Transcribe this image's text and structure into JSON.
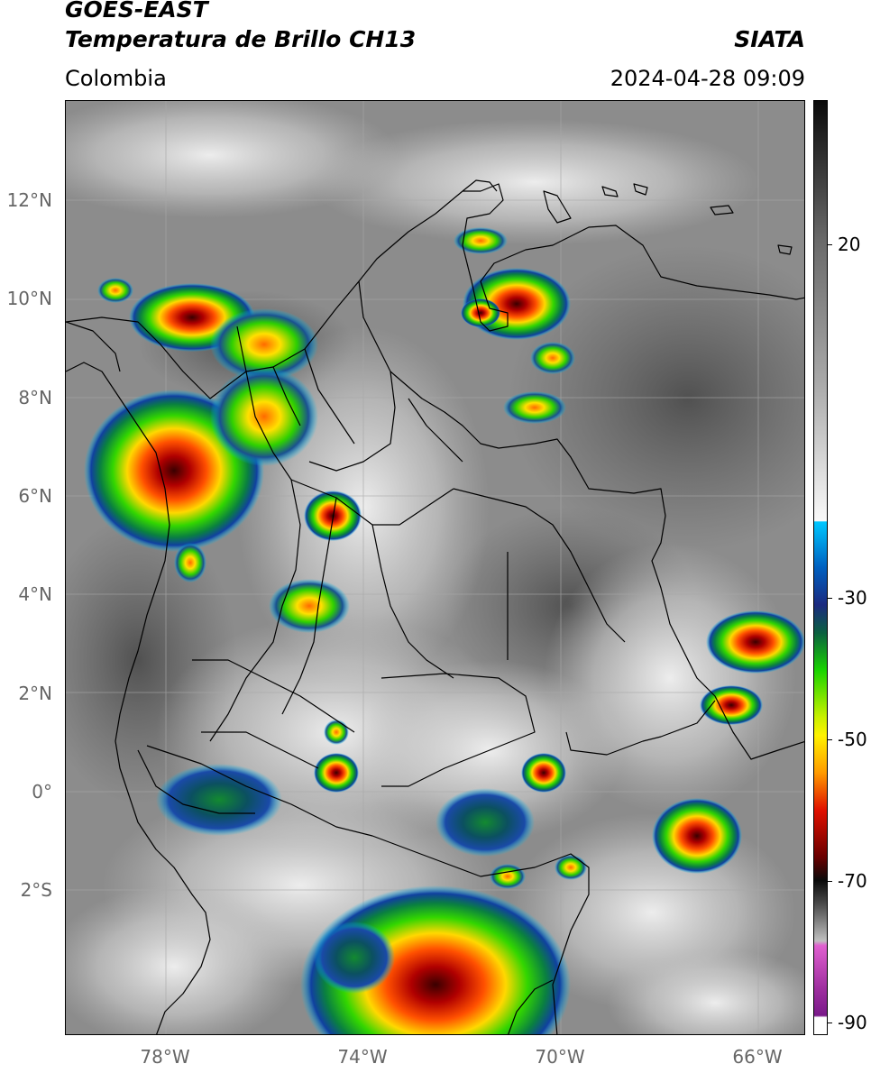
{
  "header": {
    "title": "GOES-EAST",
    "subtitle": "Temperatura de Brillo CH13",
    "region": "Colombia",
    "brand": "SIATA",
    "timestamp": "2024-04-28 09:09"
  },
  "map": {
    "lat_ticks": [
      "12°N",
      "10°N",
      "8°N",
      "6°N",
      "4°N",
      "2°N",
      "0°",
      "2°S"
    ],
    "lon_ticks": [
      "78°W",
      "74°W",
      "70°W",
      "66°W"
    ],
    "extent": {
      "lon_min": -80.1,
      "lon_max": -65.1,
      "lat_min": -4.9,
      "lat_max": 14.05
    }
  },
  "colorbar": {
    "labels": [
      "20",
      "-30",
      "-50",
      "-70",
      "-90"
    ],
    "colors": {
      "warm_gray": "#8a8a8a",
      "cold_white": "#f4f4f4",
      "cyan": "#00c8ff",
      "navy": "#1b2a80",
      "green": "#19d400",
      "yellow": "#fff200",
      "orange": "#ff9a00",
      "red": "#e01000",
      "dark_red": "#6a0000",
      "black": "#0a0a0a",
      "magenta": "#d040c0",
      "purple": "#7a1a8a"
    }
  }
}
